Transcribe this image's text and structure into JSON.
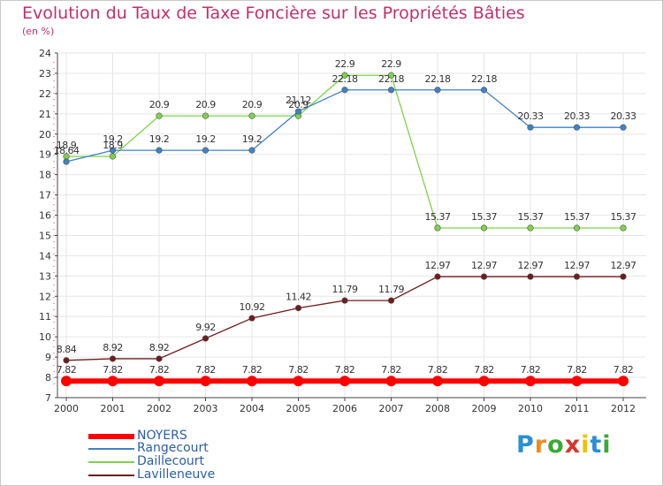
{
  "chart_data": {
    "type": "line",
    "title": "Evolution du Taux de Taxe Foncière sur les Propriétés Bâties",
    "ylabel": "(en %)",
    "xlabel": "",
    "categories": [
      "2000",
      "2001",
      "2002",
      "2003",
      "2004",
      "2005",
      "2006",
      "2007",
      "2008",
      "2009",
      "2010",
      "2011",
      "2012"
    ],
    "ylim": [
      7,
      24
    ],
    "yticks": [
      "7",
      "8",
      "9",
      "10",
      "11",
      "12",
      "13",
      "14",
      "15",
      "16",
      "17",
      "18",
      "19",
      "20",
      "21",
      "22",
      "23",
      "24"
    ],
    "series": [
      {
        "name": "NOYERS",
        "color": "#ff0000",
        "values": [
          7.82,
          7.82,
          7.82,
          7.82,
          7.82,
          7.82,
          7.82,
          7.82,
          7.82,
          7.82,
          7.82,
          7.82,
          7.82
        ],
        "labels": [
          "7.82",
          "7.82",
          "7.82",
          "7.82",
          "7.82",
          "7.82",
          "7.82",
          "7.82",
          "7.82",
          "7.82",
          "7.82",
          "7.82",
          "7.82"
        ]
      },
      {
        "name": "Rangecourt",
        "color": "#3f82c4",
        "values": [
          18.64,
          19.2,
          19.2,
          19.2,
          19.2,
          21.12,
          22.18,
          22.18,
          22.18,
          22.18,
          20.33,
          20.33,
          20.33
        ],
        "labels": [
          "18.64",
          "19.2",
          "19.2",
          "19.2",
          "19.2",
          "21.12",
          "22.18",
          "22.18",
          "22.18",
          "22.18",
          "20.33",
          "20.33",
          "20.33"
        ]
      },
      {
        "name": "Daillecourt",
        "color": "#7ed34a",
        "values": [
          18.9,
          18.9,
          20.9,
          20.9,
          20.9,
          20.9,
          22.9,
          22.9,
          15.37,
          15.37,
          15.37,
          15.37,
          15.37
        ],
        "labels": [
          "18.9",
          "18.9",
          "20.9",
          "20.9",
          "20.9",
          "20.9",
          "22.9",
          "22.9",
          "15.37",
          "15.37",
          "15.37",
          "15.37",
          "15.37"
        ]
      },
      {
        "name": "Lavilleneuve",
        "color": "#6e1c1c",
        "values": [
          8.84,
          8.92,
          8.92,
          9.92,
          10.92,
          11.42,
          11.79,
          11.79,
          12.97,
          12.97,
          12.97,
          12.97,
          12.97
        ],
        "labels": [
          "8.84",
          "8.92",
          "8.92",
          "9.92",
          "10.92",
          "11.42",
          "11.79",
          "11.79",
          "12.97",
          "12.97",
          "12.97",
          "12.97",
          "12.97"
        ]
      }
    ]
  },
  "legend": [
    {
      "label": "NOYERS",
      "color": "#ff0000"
    },
    {
      "label": "Rangecourt",
      "color": "#3f82c4"
    },
    {
      "label": "Daillecourt",
      "color": "#7ed34a"
    },
    {
      "label": "Lavilleneuve",
      "color": "#6e1c1c"
    }
  ],
  "logo": {
    "letters": [
      "P",
      "r",
      "o",
      "x",
      "i",
      "t",
      "i"
    ],
    "colors": [
      "#2a8fd6",
      "#f08a1c",
      "#3aaa35",
      "#d8362b",
      "#f2c100",
      "#2a8fd6",
      "#3aaa35"
    ]
  }
}
